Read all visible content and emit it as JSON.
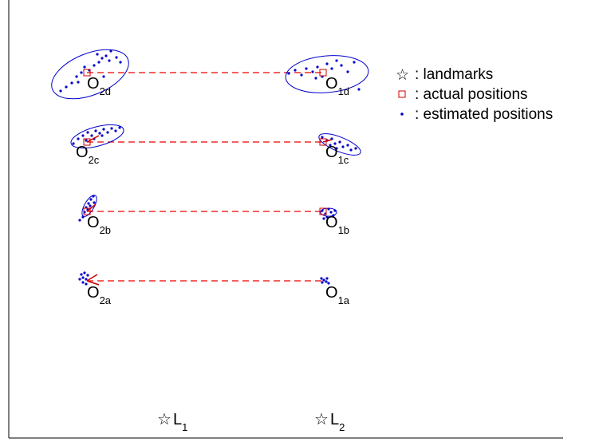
{
  "colors": {
    "axis": "#000000",
    "actual": "#cc0000",
    "estimate": "#0000cc",
    "ellipse": "#0000cc",
    "link": "#ee0000"
  },
  "legend": {
    "items": [
      {
        "symbol": "star",
        "label": ": landmarks"
      },
      {
        "symbol": "square",
        "label": ": actual positions"
      },
      {
        "symbol": "dot",
        "label": ": estimated positions"
      }
    ]
  },
  "landmarks": [
    {
      "name": "L",
      "sub": "1"
    },
    {
      "name": "L",
      "sub": "2"
    }
  ],
  "observations": [
    {
      "row": "d",
      "left": {
        "name": "O",
        "sub": "2d"
      },
      "right": {
        "name": "O",
        "sub": "1d"
      }
    },
    {
      "row": "c",
      "left": {
        "name": "O",
        "sub": "2c"
      },
      "right": {
        "name": "O",
        "sub": "1c"
      }
    },
    {
      "row": "b",
      "left": {
        "name": "O",
        "sub": "2b"
      },
      "right": {
        "name": "O",
        "sub": "1b"
      }
    },
    {
      "row": "a",
      "left": {
        "name": "O",
        "sub": "2a"
      },
      "right": {
        "name": "O",
        "sub": "1a"
      }
    }
  ]
}
